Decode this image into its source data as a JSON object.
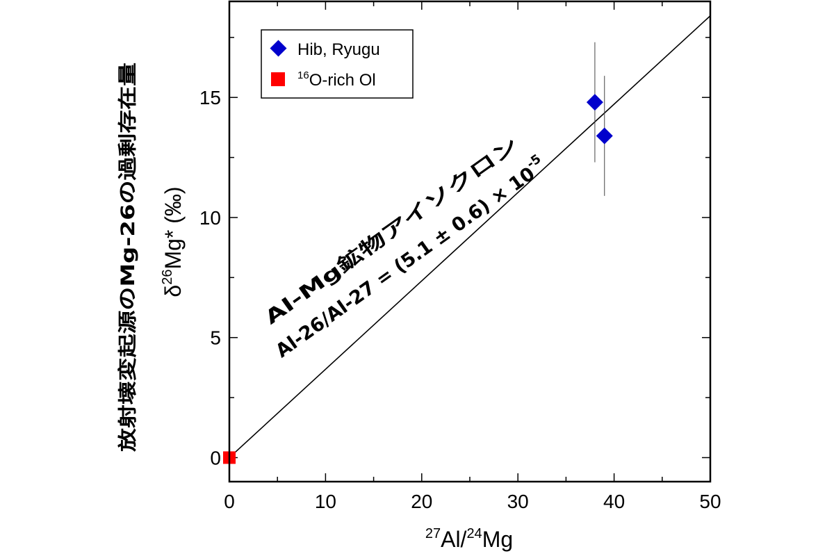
{
  "chart_data": {
    "type": "scatter",
    "xlabel": {
      "sup": "27",
      "base": "Al/",
      "sup2": "24",
      "base2": "Mg"
    },
    "ylabel": {
      "prefix": "δ",
      "sup": "26",
      "rest": "Mg* (‰)"
    },
    "ylabel_jp": "放射壊変起源のMg-26の過剰存在量",
    "xlim": [
      0,
      50
    ],
    "ylim": [
      -1,
      19
    ],
    "xticks": [
      0,
      10,
      20,
      30,
      40,
      50
    ],
    "yticks": [
      0,
      5,
      10,
      15
    ],
    "series": [
      {
        "name": "Hib, Ryugu",
        "marker": "diamond",
        "color": "#0000cc",
        "points": [
          {
            "x": 38.0,
            "y": 14.8,
            "yerr": 2.5,
            "xerr": 0.3
          },
          {
            "x": 39.0,
            "y": 13.4,
            "yerr": 2.5,
            "xerr": 0.3
          }
        ]
      },
      {
        "name": "16O-rich Ol",
        "name_sup": "16",
        "name_rest": "O-rich Ol",
        "marker": "square",
        "color": "#ff0000",
        "points": [
          {
            "x": 0.0,
            "y": 0.0
          }
        ]
      }
    ],
    "fit_line": {
      "x": [
        0,
        50
      ],
      "y": [
        0,
        18.4
      ]
    },
    "annotation": {
      "line1": "Al-Mg鉱物アイソクロン",
      "line2": "Al-26/Al-27 = (5.1 ± 0.6) × 10",
      "line2_sup": "-5"
    },
    "legend_position": "top-left",
    "grid": false
  }
}
